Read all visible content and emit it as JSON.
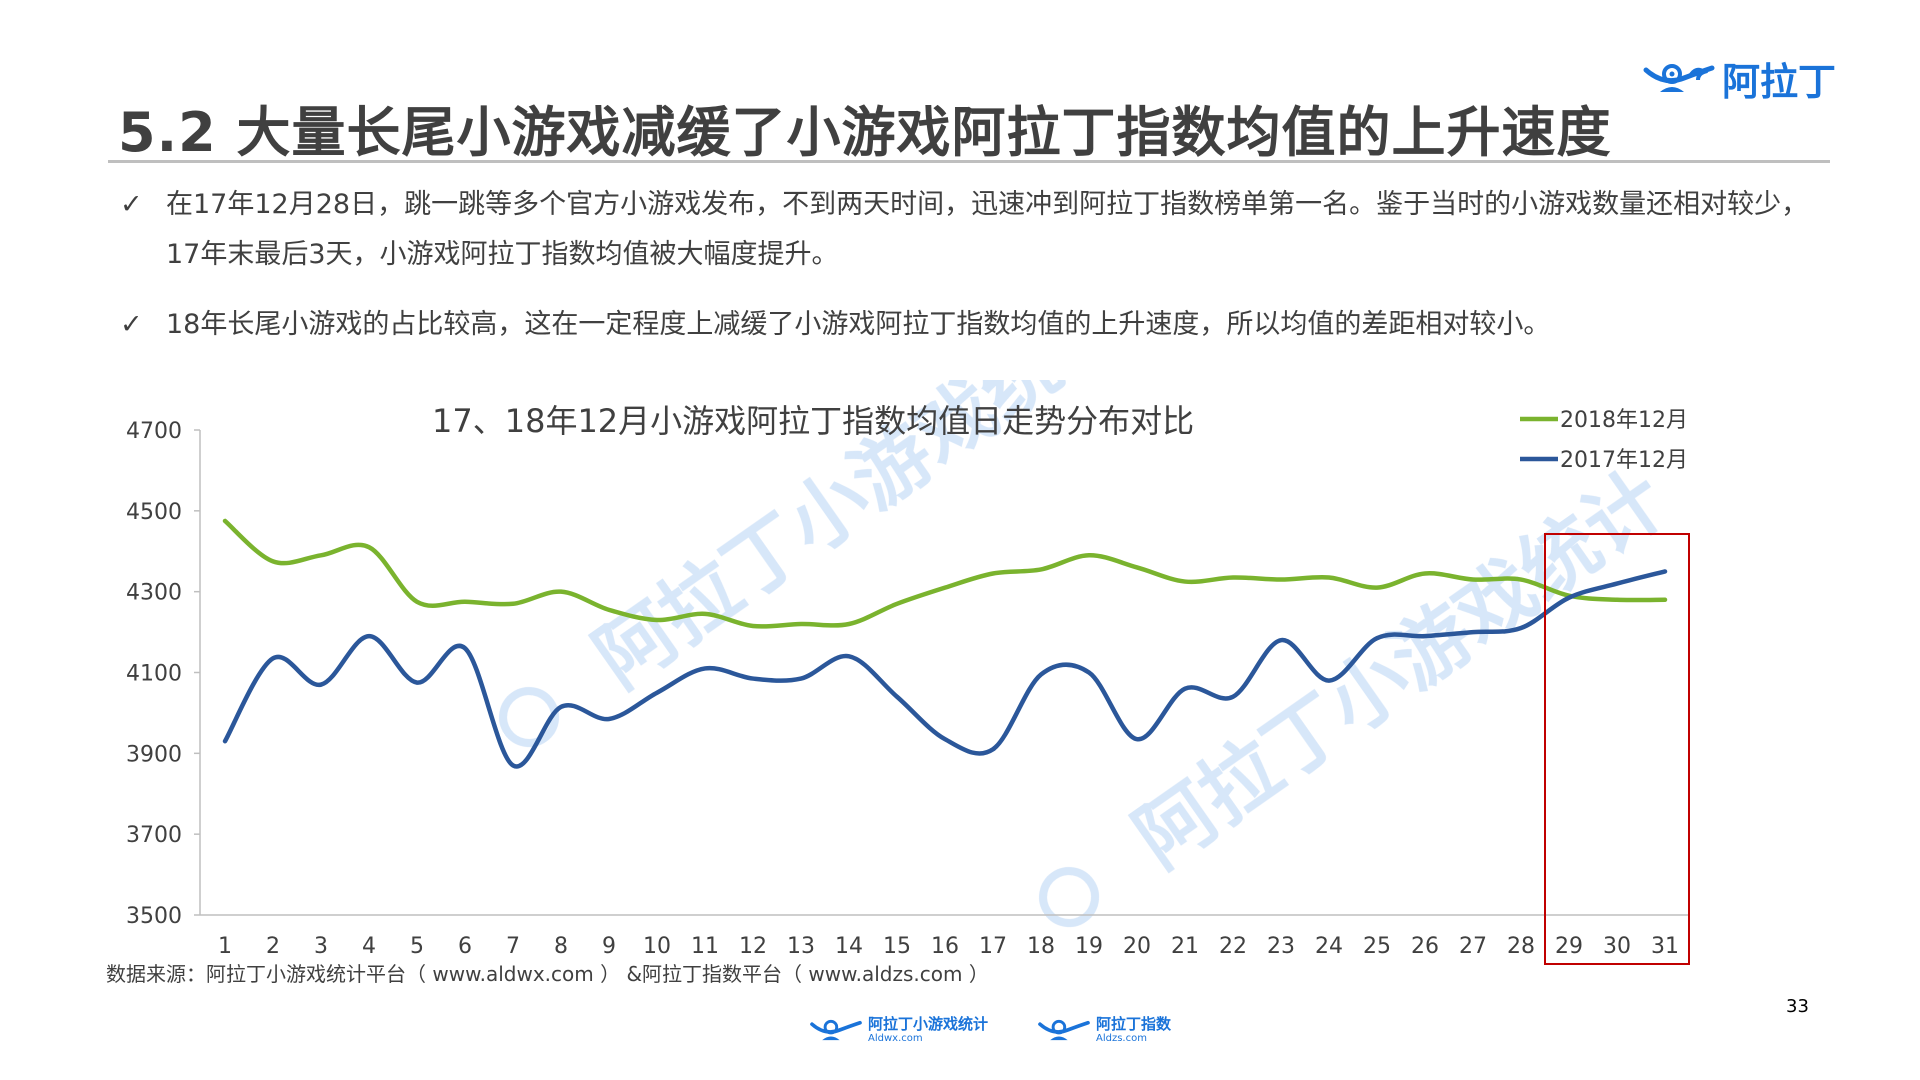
{
  "slide": {
    "title": "5.2 大量长尾小游戏减缓了小游戏阿拉丁指数均值的上升速度",
    "logo_text": "阿拉丁",
    "page_number": "33"
  },
  "bullets": [
    {
      "check": "✓",
      "text": "在17年12月28日，跳一跳等多个官方小游戏发布，不到两天时间，迅速冲到阿拉丁指数榜单第一名。鉴于当时的小游戏数量还相对较少，17年末最后3天，小游戏阿拉丁指数均值被大幅度提升。"
    },
    {
      "check": "✓",
      "text": "18年长尾小游戏的占比较高，这在一定程度上减缓了小游戏阿拉丁指数均值的上升速度，所以均值的差距相对较小。"
    }
  ],
  "source": "数据来源：阿拉丁小游戏统计平台（ www.aldwx.com ） &阿拉丁指数平台（ www.aldzs.com ）",
  "watermark": {
    "text": "阿拉丁小游戏统计"
  },
  "footer": {
    "logo1": {
      "name": "阿拉丁小游戏统计",
      "url": "Aldwx.com"
    },
    "logo2": {
      "name": "阿拉丁指数",
      "url": "Aldzs.com"
    }
  },
  "colors": {
    "series_2018": "#7ab32e",
    "series_2017": "#2b579a",
    "highlight_box": "#c00000",
    "brand_blue": "#1a73d9"
  },
  "chart_data": {
    "type": "line",
    "title": "17、18年12月小游戏阿拉丁指数均值日走势分布对比",
    "xlabel": "",
    "ylabel": "",
    "x": [
      1,
      2,
      3,
      4,
      5,
      6,
      7,
      8,
      9,
      10,
      11,
      12,
      13,
      14,
      15,
      16,
      17,
      18,
      19,
      20,
      21,
      22,
      23,
      24,
      25,
      26,
      27,
      28,
      29,
      30,
      31
    ],
    "ylim": [
      3500,
      4700
    ],
    "yticks": [
      3500,
      3700,
      3900,
      4100,
      4300,
      4500,
      4700
    ],
    "legend_position": "top-right",
    "highlight_range": [
      29,
      31
    ],
    "series": [
      {
        "name": "2018年12月",
        "color": "#7ab32e",
        "values": [
          4475,
          4375,
          4390,
          4410,
          4275,
          4275,
          4270,
          4300,
          4255,
          4230,
          4245,
          4215,
          4220,
          4220,
          4270,
          4310,
          4345,
          4355,
          4390,
          4360,
          4325,
          4335,
          4330,
          4335,
          4310,
          4345,
          4330,
          4330,
          4290,
          4280,
          4280
        ]
      },
      {
        "name": "2017年12月",
        "color": "#2b579a",
        "values": [
          3930,
          4135,
          4070,
          4190,
          4075,
          4160,
          3870,
          4015,
          3985,
          4050,
          4110,
          4085,
          4085,
          4140,
          4040,
          3935,
          3910,
          4095,
          4100,
          3935,
          4060,
          4040,
          4180,
          4080,
          4185,
          4190,
          4200,
          4210,
          4285,
          4320,
          4350
        ]
      }
    ]
  }
}
